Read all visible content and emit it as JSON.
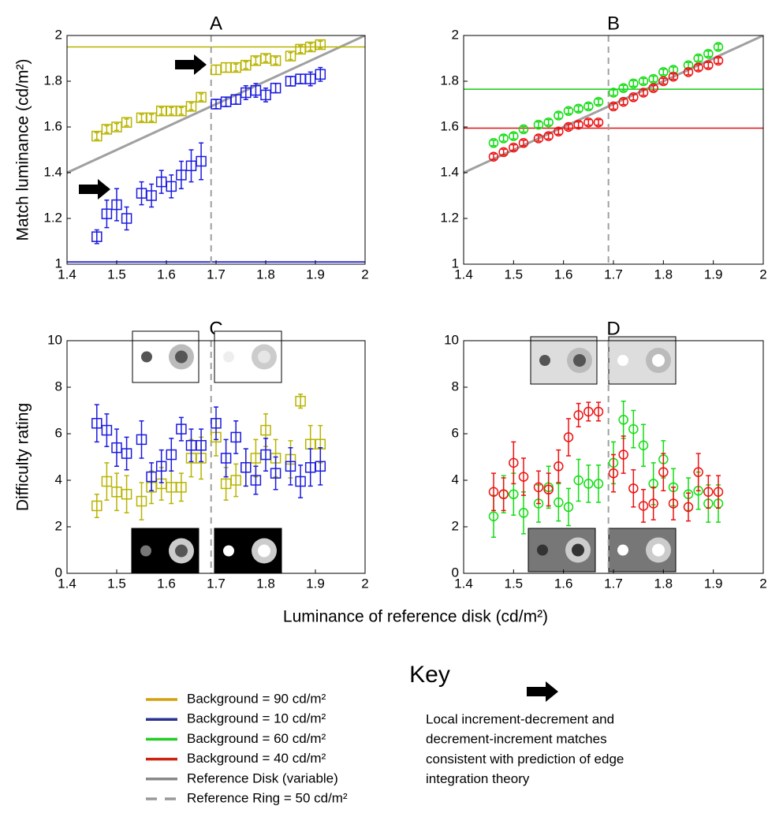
{
  "figure_xlabel": "Luminance of reference disk (cd/m²)",
  "chart_data": [
    {
      "type": "scatter",
      "title": "A",
      "ylabel": "Match luminance (cd/m²)",
      "marker": "square",
      "xlim": [
        1.4,
        2
      ],
      "xticks": [
        1.4,
        1.5,
        1.6,
        1.7,
        1.8,
        1.9,
        2
      ],
      "ylim": [
        1,
        2
      ],
      "yticks": [
        1,
        1.2,
        1.4,
        1.6,
        1.8,
        2
      ],
      "identity_line": {
        "color": "#a0a0a0"
      },
      "vline": {
        "value": 1.69,
        "color": "#a0a0a0"
      },
      "hlines": [
        {
          "value": 1.95,
          "color": "#b8b400"
        },
        {
          "value": 1.01,
          "color": "#0000cc"
        }
      ],
      "x": [
        1.46,
        1.48,
        1.5,
        1.52,
        1.55,
        1.57,
        1.59,
        1.61,
        1.63,
        1.65,
        1.67,
        1.7,
        1.72,
        1.74,
        1.76,
        1.78,
        1.8,
        1.82,
        1.85,
        1.87,
        1.89,
        1.91
      ],
      "series": [
        {
          "color": "#b8b400",
          "values": [
            1.56,
            1.59,
            1.6,
            1.62,
            1.64,
            1.64,
            1.67,
            1.67,
            1.67,
            1.69,
            1.73,
            1.85,
            1.86,
            1.86,
            1.87,
            1.89,
            1.9,
            1.89,
            1.91,
            1.94,
            1.95,
            1.96
          ],
          "errors": [
            0.015,
            0.015,
            0.015,
            0.015,
            0.015,
            0.015,
            0.015,
            0.015,
            0.015,
            0.015,
            0.015,
            0.02,
            0.02,
            0.015,
            0.015,
            0.015,
            0.015,
            0.015,
            0.015,
            0.015,
            0.015,
            0.015
          ]
        },
        {
          "color": "#1a1ae0",
          "values": [
            1.12,
            1.22,
            1.26,
            1.2,
            1.31,
            1.3,
            1.36,
            1.34,
            1.39,
            1.43,
            1.45,
            1.7,
            1.71,
            1.72,
            1.75,
            1.76,
            1.74,
            1.77,
            1.8,
            1.81,
            1.81,
            1.83
          ],
          "errors": [
            0.03,
            0.06,
            0.07,
            0.05,
            0.05,
            0.05,
            0.05,
            0.05,
            0.06,
            0.07,
            0.08,
            0.02,
            0.02,
            0.02,
            0.03,
            0.03,
            0.03,
            0.02,
            0.02,
            0.02,
            0.03,
            0.03
          ]
        }
      ]
    },
    {
      "type": "scatter",
      "title": "B",
      "marker": "circle",
      "xlim": [
        1.4,
        2
      ],
      "xticks": [
        1.4,
        1.5,
        1.6,
        1.7,
        1.8,
        1.9,
        2
      ],
      "ylim": [
        1,
        2
      ],
      "yticks": [
        1,
        1.2,
        1.4,
        1.6,
        1.8,
        2
      ],
      "identity_line": {
        "color": "#a0a0a0"
      },
      "vline": {
        "value": 1.69,
        "color": "#a0a0a0"
      },
      "hlines": [
        {
          "value": 1.765,
          "color": "#11cc11"
        },
        {
          "value": 1.595,
          "color": "#dd1111"
        }
      ],
      "x": [
        1.46,
        1.48,
        1.5,
        1.52,
        1.55,
        1.57,
        1.59,
        1.61,
        1.63,
        1.65,
        1.67,
        1.7,
        1.72,
        1.74,
        1.76,
        1.78,
        1.8,
        1.82,
        1.85,
        1.87,
        1.89,
        1.91
      ],
      "series": [
        {
          "color": "#11dd11",
          "values": [
            1.53,
            1.55,
            1.56,
            1.59,
            1.61,
            1.62,
            1.65,
            1.67,
            1.68,
            1.69,
            1.71,
            1.75,
            1.77,
            1.79,
            1.8,
            1.81,
            1.84,
            1.85,
            1.87,
            1.9,
            1.92,
            1.95
          ],
          "errors": [
            0.012,
            0.012,
            0.012,
            0.012,
            0.012,
            0.012,
            0.012,
            0.012,
            0.012,
            0.012,
            0.012,
            0.012,
            0.012,
            0.012,
            0.012,
            0.012,
            0.012,
            0.012,
            0.012,
            0.012,
            0.012,
            0.012
          ]
        },
        {
          "color": "#ee1111",
          "values": [
            1.47,
            1.49,
            1.51,
            1.53,
            1.55,
            1.56,
            1.58,
            1.6,
            1.61,
            1.62,
            1.62,
            1.69,
            1.71,
            1.73,
            1.75,
            1.77,
            1.8,
            1.82,
            1.84,
            1.86,
            1.87,
            1.89
          ],
          "errors": [
            0.012,
            0.012,
            0.012,
            0.012,
            0.012,
            0.012,
            0.012,
            0.012,
            0.012,
            0.012,
            0.012,
            0.012,
            0.012,
            0.012,
            0.012,
            0.012,
            0.012,
            0.012,
            0.012,
            0.012,
            0.012,
            0.012
          ]
        }
      ]
    },
    {
      "type": "scatter",
      "title": "C",
      "ylabel": "Difficulty rating",
      "marker": "square",
      "xlim": [
        1.4,
        2
      ],
      "xticks": [
        1.4,
        1.5,
        1.6,
        1.7,
        1.8,
        1.9,
        2
      ],
      "ylim": [
        0,
        10
      ],
      "yticks": [
        0,
        2,
        4,
        6,
        8,
        10
      ],
      "vline": {
        "value": 1.69,
        "color": "#a0a0a0"
      },
      "x": [
        1.46,
        1.48,
        1.5,
        1.52,
        1.55,
        1.57,
        1.59,
        1.61,
        1.63,
        1.65,
        1.67,
        1.7,
        1.72,
        1.74,
        1.76,
        1.78,
        1.8,
        1.82,
        1.85,
        1.87,
        1.89,
        1.91
      ],
      "series": [
        {
          "color": "#b8b400",
          "values": [
            2.9,
            3.95,
            3.5,
            3.4,
            3.1,
            3.7,
            3.85,
            3.7,
            3.7,
            4.95,
            4.95,
            5.85,
            3.85,
            4.0,
            4.55,
            4.95,
            6.15,
            4.95,
            4.9,
            7.4,
            5.55,
            5.55
          ],
          "errors": [
            0.5,
            0.8,
            0.8,
            0.8,
            0.8,
            0.7,
            0.7,
            0.7,
            0.6,
            0.8,
            0.9,
            0.8,
            0.7,
            0.7,
            0.8,
            0.8,
            0.7,
            0.8,
            0.8,
            0.3,
            0.8,
            0.8
          ]
        },
        {
          "color": "#1a1ae0",
          "values": [
            6.45,
            6.15,
            5.4,
            5.15,
            5.75,
            4.15,
            4.6,
            5.1,
            6.2,
            5.5,
            5.5,
            6.45,
            4.95,
            5.85,
            4.55,
            4.0,
            5.1,
            4.3,
            4.6,
            3.95,
            4.55,
            4.6
          ],
          "errors": [
            0.8,
            0.7,
            0.8,
            0.7,
            0.8,
            0.6,
            0.7,
            0.7,
            0.5,
            0.7,
            0.7,
            0.7,
            0.8,
            0.7,
            0.8,
            0.6,
            0.7,
            0.7,
            0.8,
            0.7,
            0.8,
            0.8
          ]
        }
      ]
    },
    {
      "type": "scatter",
      "title": "D",
      "marker": "circle",
      "xlim": [
        1.4,
        2
      ],
      "xticks": [
        1.4,
        1.5,
        1.6,
        1.7,
        1.8,
        1.9,
        2
      ],
      "ylim": [
        0,
        10
      ],
      "yticks": [
        0,
        2,
        4,
        6,
        8,
        10
      ],
      "vline": {
        "value": 1.69,
        "color": "#a0a0a0"
      },
      "x": [
        1.46,
        1.48,
        1.5,
        1.52,
        1.55,
        1.57,
        1.59,
        1.61,
        1.63,
        1.65,
        1.67,
        1.7,
        1.72,
        1.74,
        1.76,
        1.78,
        1.8,
        1.82,
        1.85,
        1.87,
        1.89,
        1.91
      ],
      "series": [
        {
          "color": "#11dd11",
          "values": [
            2.45,
            3.4,
            3.4,
            2.6,
            3.0,
            3.7,
            3.05,
            2.85,
            4.0,
            3.85,
            3.85,
            4.75,
            6.6,
            6.2,
            5.5,
            3.85,
            4.9,
            3.7,
            3.4,
            3.55,
            3.0,
            3.0
          ],
          "errors": [
            0.9,
            0.8,
            0.9,
            0.9,
            0.8,
            0.9,
            0.8,
            0.8,
            0.9,
            0.8,
            0.8,
            0.9,
            0.8,
            0.8,
            0.9,
            0.9,
            0.8,
            0.8,
            0.7,
            0.8,
            0.8,
            0.8
          ]
        },
        {
          "color": "#ee1111",
          "values": [
            3.5,
            3.4,
            4.75,
            4.15,
            3.7,
            3.6,
            4.6,
            5.85,
            6.8,
            6.95,
            6.95,
            4.3,
            5.1,
            3.65,
            2.9,
            3.0,
            4.35,
            3.0,
            2.85,
            4.35,
            3.5,
            3.5
          ],
          "errors": [
            0.8,
            0.7,
            0.9,
            0.8,
            0.7,
            0.7,
            0.7,
            0.8,
            0.5,
            0.4,
            0.4,
            0.8,
            0.8,
            0.8,
            0.7,
            0.7,
            0.8,
            0.7,
            0.6,
            0.8,
            0.7,
            0.7
          ]
        }
      ]
    }
  ],
  "key": {
    "title": "Key",
    "items": [
      {
        "label": "Background = 90 cd/m²",
        "color": "#d4a010",
        "style": "solid"
      },
      {
        "label": "Background = 10 cd/m²",
        "color": "#2a3290",
        "style": "solid"
      },
      {
        "label": "Background = 60 cd/m²",
        "color": "#22cc22",
        "style": "solid"
      },
      {
        "label": "Background = 40 cd/m²",
        "color": "#cc2211",
        "style": "solid"
      },
      {
        "label": "Reference Disk (variable)",
        "color": "#888888",
        "style": "solid"
      },
      {
        "label": "Reference Ring = 50 cd/m²",
        "color": "#999999",
        "style": "dashed"
      }
    ],
    "note": [
      "Local increment-decrement and",
      "decrement-increment matches",
      "consistent with prediction of edge",
      "integration theory"
    ]
  }
}
